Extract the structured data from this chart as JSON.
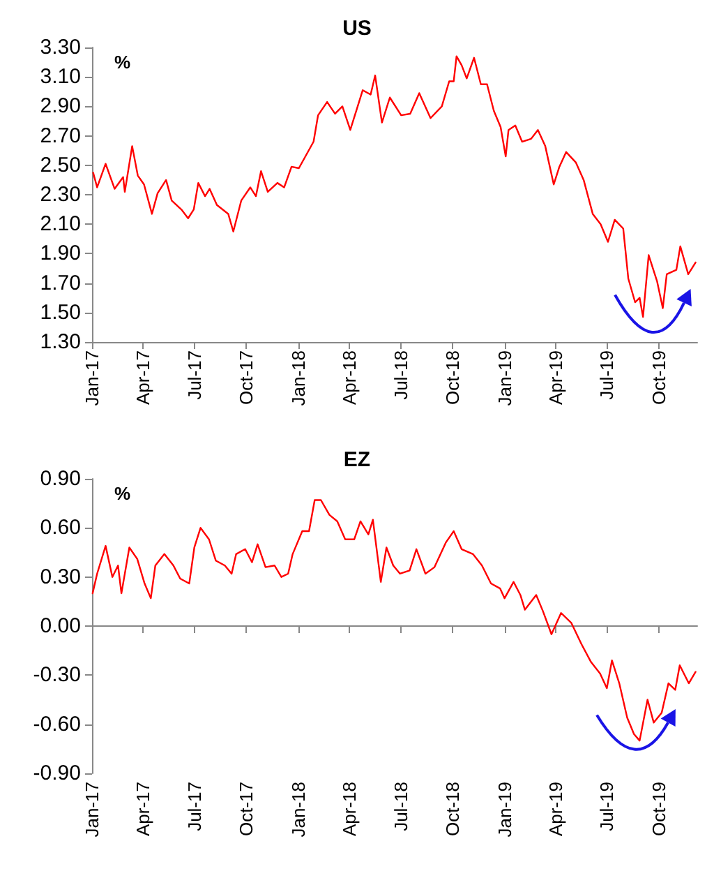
{
  "chart_data": [
    {
      "type": "line",
      "title": "US",
      "ylabel": "%",
      "x": [
        "2017-01-03",
        "2017-01-10",
        "2017-01-25",
        "2017-02-10",
        "2017-02-25",
        "2017-02-28",
        "2017-03-13",
        "2017-03-23",
        "2017-04-03",
        "2017-04-17",
        "2017-04-27",
        "2017-05-12",
        "2017-05-22",
        "2017-06-08",
        "2017-06-20",
        "2017-06-30",
        "2017-07-08",
        "2017-07-20",
        "2017-07-28",
        "2017-08-10",
        "2017-08-30",
        "2017-09-08",
        "2017-09-22",
        "2017-10-08",
        "2017-10-18",
        "2017-10-27",
        "2017-11-08",
        "2017-11-25",
        "2017-12-07",
        "2017-12-20",
        "2018-01-02",
        "2018-01-15",
        "2018-01-28",
        "2018-02-05",
        "2018-02-21",
        "2018-03-07",
        "2018-03-20",
        "2018-04-03",
        "2018-04-25",
        "2018-05-09",
        "2018-05-17",
        "2018-05-29",
        "2018-06-12",
        "2018-07-02",
        "2018-07-18",
        "2018-08-03",
        "2018-08-23",
        "2018-09-12",
        "2018-09-25",
        "2018-10-03",
        "2018-10-08",
        "2018-10-17",
        "2018-10-26",
        "2018-11-08",
        "2018-11-20",
        "2018-12-01",
        "2018-12-13",
        "2018-12-25",
        "2019-01-03",
        "2019-01-08",
        "2019-01-20",
        "2019-02-01",
        "2019-02-17",
        "2019-03-01",
        "2019-03-14",
        "2019-03-29",
        "2019-04-08",
        "2019-04-20",
        "2019-05-07",
        "2019-05-21",
        "2019-06-06",
        "2019-06-20",
        "2019-07-03",
        "2019-07-15",
        "2019-07-30",
        "2019-08-08",
        "2019-08-20",
        "2019-08-28",
        "2019-09-03",
        "2019-09-13",
        "2019-09-28",
        "2019-10-08",
        "2019-10-15",
        "2019-11-01",
        "2019-11-08",
        "2019-11-22",
        "2019-12-05"
      ],
      "series": [
        {
          "color": "#ff0000",
          "values": [
            2.45,
            2.35,
            2.51,
            2.34,
            2.42,
            2.32,
            2.63,
            2.43,
            2.37,
            2.17,
            2.31,
            2.4,
            2.26,
            2.2,
            2.14,
            2.2,
            2.38,
            2.29,
            2.34,
            2.23,
            2.17,
            2.05,
            2.26,
            2.35,
            2.29,
            2.46,
            2.32,
            2.38,
            2.35,
            2.49,
            2.48,
            2.57,
            2.66,
            2.84,
            2.93,
            2.85,
            2.9,
            2.74,
            3.01,
            2.98,
            3.11,
            2.79,
            2.96,
            2.84,
            2.85,
            2.99,
            2.82,
            2.9,
            3.07,
            3.07,
            3.24,
            3.18,
            3.09,
            3.23,
            3.05,
            3.05,
            2.87,
            2.76,
            2.56,
            2.74,
            2.77,
            2.66,
            2.68,
            2.74,
            2.63,
            2.37,
            2.49,
            2.59,
            2.52,
            2.4,
            2.17,
            2.1,
            1.98,
            2.13,
            2.07,
            1.73,
            1.57,
            1.6,
            1.47,
            1.89,
            1.71,
            1.53,
            1.76,
            1.79,
            1.95,
            1.76,
            1.84
          ]
        }
      ],
      "xlim": [
        "2017-01-01",
        "2019-12-08"
      ],
      "xticks": [
        {
          "value": "2017-01-01",
          "label": "Jan-17"
        },
        {
          "value": "2017-04-01",
          "label": "Apr-17"
        },
        {
          "value": "2017-07-01",
          "label": "Jul-17"
        },
        {
          "value": "2017-10-01",
          "label": "Oct-17"
        },
        {
          "value": "2018-01-01",
          "label": "Jan-18"
        },
        {
          "value": "2018-04-01",
          "label": "Apr-18"
        },
        {
          "value": "2018-07-01",
          "label": "Jul-18"
        },
        {
          "value": "2018-10-01",
          "label": "Oct-18"
        },
        {
          "value": "2019-01-01",
          "label": "Jan-19"
        },
        {
          "value": "2019-04-01",
          "label": "Apr-19"
        },
        {
          "value": "2019-07-01",
          "label": "Jul-19"
        },
        {
          "value": "2019-10-01",
          "label": "Oct-19"
        }
      ],
      "ylim": [
        1.3,
        3.3
      ],
      "yticks": [
        {
          "value": 1.3,
          "label": "1.30"
        },
        {
          "value": 1.5,
          "label": "1.50"
        },
        {
          "value": 1.7,
          "label": "1.70"
        },
        {
          "value": 1.9,
          "label": "1.90"
        },
        {
          "value": 2.1,
          "label": "2.10"
        },
        {
          "value": 2.3,
          "label": "2.30"
        },
        {
          "value": 2.5,
          "label": "2.50"
        },
        {
          "value": 2.7,
          "label": "2.70"
        },
        {
          "value": 2.9,
          "label": "2.90"
        },
        {
          "value": 3.1,
          "label": "3.10"
        },
        {
          "value": 3.3,
          "label": "3.30"
        }
      ],
      "marker": "none",
      "line_style": "solid"
    },
    {
      "type": "line",
      "title": "EZ",
      "ylabel": "%",
      "x": [
        "2017-01-02",
        "2017-01-10",
        "2017-01-25",
        "2017-02-06",
        "2017-02-16",
        "2017-02-22",
        "2017-03-08",
        "2017-03-22",
        "2017-04-04",
        "2017-04-15",
        "2017-04-23",
        "2017-05-09",
        "2017-05-25",
        "2017-06-06",
        "2017-06-22",
        "2017-07-01",
        "2017-07-12",
        "2017-07-27",
        "2017-08-08",
        "2017-08-24",
        "2017-09-05",
        "2017-09-13",
        "2017-09-29",
        "2017-10-11",
        "2017-10-21",
        "2017-11-04",
        "2017-11-20",
        "2017-12-02",
        "2017-12-14",
        "2017-12-22",
        "2018-01-08",
        "2018-01-20",
        "2018-01-30",
        "2018-02-10",
        "2018-02-25",
        "2018-03-11",
        "2018-03-25",
        "2018-04-10",
        "2018-04-21",
        "2018-05-05",
        "2018-05-13",
        "2018-05-27",
        "2018-06-06",
        "2018-06-18",
        "2018-06-30",
        "2018-07-17",
        "2018-07-29",
        "2018-08-14",
        "2018-08-30",
        "2018-09-19",
        "2018-10-03",
        "2018-10-17",
        "2018-11-06",
        "2018-11-22",
        "2018-12-08",
        "2018-12-24",
        "2019-01-01",
        "2019-01-17",
        "2019-01-29",
        "2019-02-06",
        "2019-02-26",
        "2019-03-10",
        "2019-03-25",
        "2019-04-11",
        "2019-04-29",
        "2019-05-17",
        "2019-06-03",
        "2019-06-19",
        "2019-07-01",
        "2019-07-10",
        "2019-07-23",
        "2019-08-06",
        "2019-08-18",
        "2019-08-28",
        "2019-09-11",
        "2019-09-22",
        "2019-10-06",
        "2019-10-18",
        "2019-10-30",
        "2019-11-07",
        "2019-11-23",
        "2019-12-05"
      ],
      "series": [
        {
          "color": "#ff0000",
          "values": [
            0.2,
            0.32,
            0.49,
            0.3,
            0.37,
            0.2,
            0.48,
            0.41,
            0.26,
            0.17,
            0.37,
            0.44,
            0.37,
            0.29,
            0.26,
            0.48,
            0.6,
            0.53,
            0.4,
            0.37,
            0.32,
            0.44,
            0.47,
            0.39,
            0.5,
            0.36,
            0.37,
            0.3,
            0.32,
            0.44,
            0.58,
            0.58,
            0.77,
            0.77,
            0.68,
            0.64,
            0.53,
            0.53,
            0.64,
            0.56,
            0.65,
            0.27,
            0.48,
            0.37,
            0.32,
            0.34,
            0.47,
            0.32,
            0.36,
            0.51,
            0.58,
            0.47,
            0.44,
            0.37,
            0.26,
            0.23,
            0.17,
            0.27,
            0.19,
            0.1,
            0.19,
            0.09,
            -0.05,
            0.08,
            0.02,
            -0.11,
            -0.22,
            -0.29,
            -0.38,
            -0.21,
            -0.35,
            -0.56,
            -0.66,
            -0.7,
            -0.45,
            -0.59,
            -0.53,
            -0.35,
            -0.39,
            -0.24,
            -0.35,
            -0.28
          ]
        }
      ],
      "xlim": [
        "2017-01-01",
        "2019-12-08"
      ],
      "xticks": [
        {
          "value": "2017-01-01",
          "label": "Jan-17"
        },
        {
          "value": "2017-04-01",
          "label": "Apr-17"
        },
        {
          "value": "2017-07-01",
          "label": "Jul-17"
        },
        {
          "value": "2017-10-01",
          "label": "Oct-17"
        },
        {
          "value": "2018-01-01",
          "label": "Jan-18"
        },
        {
          "value": "2018-04-01",
          "label": "Apr-18"
        },
        {
          "value": "2018-07-01",
          "label": "Jul-18"
        },
        {
          "value": "2018-10-01",
          "label": "Oct-18"
        },
        {
          "value": "2019-01-01",
          "label": "Jan-19"
        },
        {
          "value": "2019-04-01",
          "label": "Apr-19"
        },
        {
          "value": "2019-07-01",
          "label": "Jul-19"
        },
        {
          "value": "2019-10-01",
          "label": "Oct-19"
        }
      ],
      "ylim": [
        -0.9,
        0.9
      ],
      "yticks": [
        {
          "value": -0.9,
          "label": "-0.90"
        },
        {
          "value": -0.6,
          "label": "-0.60"
        },
        {
          "value": -0.3,
          "label": "-0.30"
        },
        {
          "value": 0,
          "label": "0.00"
        },
        {
          "value": 0.3,
          "label": "0.30"
        },
        {
          "value": 0.6,
          "label": "0.60"
        },
        {
          "value": 0.9,
          "label": "0.90"
        }
      ],
      "marker": "none",
      "line_style": "solid"
    }
  ]
}
